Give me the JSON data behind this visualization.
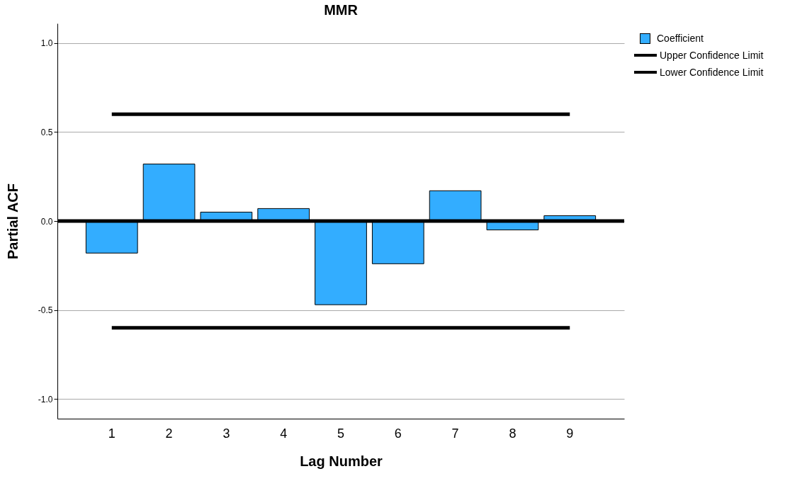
{
  "chart_data": {
    "type": "bar",
    "title": "MMR",
    "xlabel": "Lag Number",
    "ylabel": "Partial ACF",
    "categories": [
      "1",
      "2",
      "3",
      "4",
      "5",
      "6",
      "7",
      "8",
      "9"
    ],
    "series": [
      {
        "name": "Coefficient",
        "color": "#33adff",
        "values": [
          -0.18,
          0.32,
          0.05,
          0.07,
          -0.47,
          -0.24,
          0.17,
          -0.05,
          0.03
        ]
      },
      {
        "name": "Upper Confidence Limit",
        "type": "line",
        "color": "#000000",
        "values": [
          0.6,
          0.6,
          0.6,
          0.6,
          0.6,
          0.6,
          0.6,
          0.6,
          0.6
        ]
      },
      {
        "name": "Lower Confidence Limit",
        "type": "line",
        "color": "#000000",
        "values": [
          -0.6,
          -0.6,
          -0.6,
          -0.6,
          -0.6,
          -0.6,
          -0.6,
          -0.6,
          -0.6
        ]
      }
    ],
    "ref_lines": [
      {
        "axis": "y",
        "value": 0,
        "color": "#000000"
      }
    ],
    "ylim": [
      -1.11,
      1.11
    ],
    "yticks": [
      {
        "value": -1,
        "label": "-1.0"
      },
      {
        "value": -0.5,
        "label": "-0.5"
      },
      {
        "value": 0,
        "label": "0.0"
      },
      {
        "value": 0.5,
        "label": "0.5"
      },
      {
        "value": 1,
        "label": "1.0"
      }
    ],
    "grid": "y",
    "legend": "top right"
  }
}
